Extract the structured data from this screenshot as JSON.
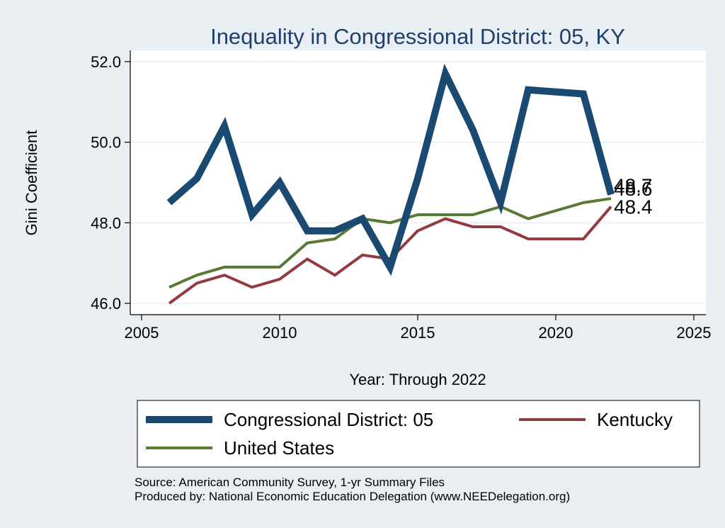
{
  "chart_data": {
    "type": "line",
    "title": "Inequality in Congressional District:  05, KY",
    "xlabel": "Year: Through 2022",
    "ylabel": "Gini Coefficient",
    "xlim": [
      2005,
      2025
    ],
    "ylim": [
      46.0,
      52.0
    ],
    "x_ticks": [
      2005,
      2010,
      2015,
      2020,
      2025
    ],
    "y_ticks": [
      46.0,
      48.0,
      50.0,
      52.0
    ],
    "y_tick_labels": [
      "46.0",
      "48.0",
      "50.0",
      "52.0"
    ],
    "grid": true,
    "legend_position": "bottom",
    "series": [
      {
        "name": "Congressional District:  05",
        "color": "#1a4a72",
        "x": [
          2006,
          2007,
          2008,
          2009,
          2010,
          2011,
          2012,
          2013,
          2014,
          2015,
          2016,
          2017,
          2018,
          2019,
          2021,
          2022
        ],
        "values": [
          48.5,
          49.1,
          50.4,
          48.2,
          49.0,
          47.8,
          47.8,
          48.1,
          46.9,
          49.1,
          51.7,
          50.3,
          48.5,
          51.3,
          51.2,
          48.7
        ],
        "end_label": "48.7"
      },
      {
        "name": "Kentucky",
        "color": "#943a41",
        "x": [
          2006,
          2007,
          2008,
          2009,
          2010,
          2011,
          2012,
          2013,
          2014,
          2015,
          2016,
          2017,
          2018,
          2019,
          2021,
          2022
        ],
        "values": [
          46.0,
          46.5,
          46.7,
          46.4,
          46.6,
          47.1,
          46.7,
          47.2,
          47.1,
          47.8,
          48.1,
          47.9,
          47.9,
          47.6,
          47.6,
          48.4
        ],
        "end_label": "48.4"
      },
      {
        "name": "United States",
        "color": "#587a35",
        "x": [
          2006,
          2007,
          2008,
          2009,
          2010,
          2011,
          2012,
          2013,
          2014,
          2015,
          2016,
          2017,
          2018,
          2019,
          2021,
          2022
        ],
        "values": [
          46.4,
          46.7,
          46.9,
          46.9,
          46.9,
          47.5,
          47.6,
          48.1,
          48.0,
          48.2,
          48.2,
          48.2,
          48.4,
          48.1,
          48.5,
          48.6
        ],
        "end_label": "48.6"
      }
    ],
    "notes": [
      "Source: American Community Survey, 1-yr Summary Files",
      "Produced by: National Economic Education Delegation (www.NEEDelegation.org)"
    ]
  }
}
